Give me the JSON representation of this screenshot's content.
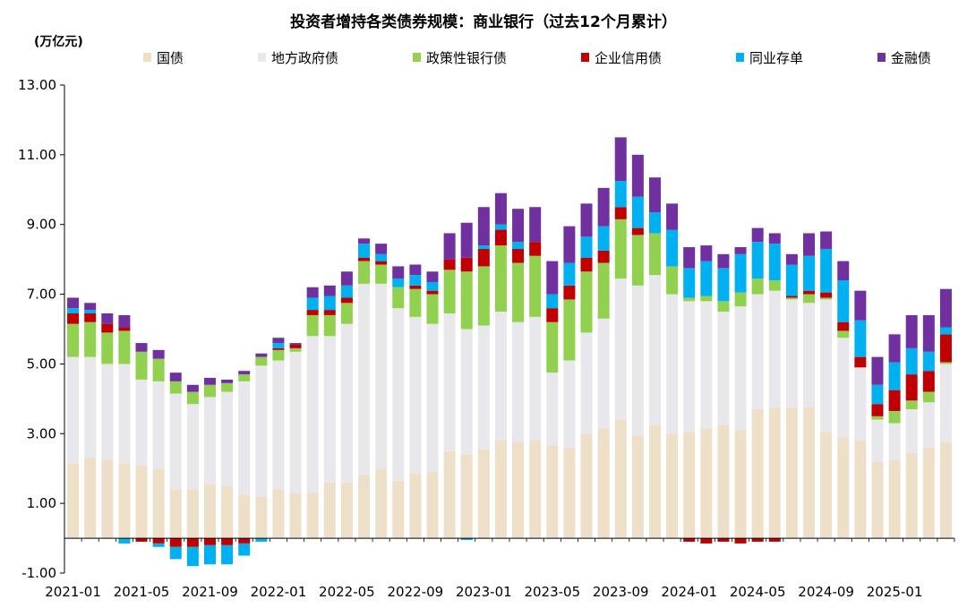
{
  "chart_data": {
    "type": "bar",
    "stacked": true,
    "title": "投资者增持各类债券规模：商业银行（过去12个月累计）",
    "ylabel": "(万亿元)",
    "ylim": [
      -1.0,
      13.0
    ],
    "yticks": [
      "-1.00",
      "1.00",
      "3.00",
      "5.00",
      "7.00",
      "9.00",
      "11.00",
      "13.00"
    ],
    "ytick_values": [
      -1,
      1,
      3,
      5,
      7,
      9,
      11,
      13
    ],
    "xtick_labels": [
      "2021-01",
      "2021-05",
      "2021-09",
      "2022-01",
      "2022-05",
      "2022-09",
      "2023-01",
      "2023-05",
      "2023-09",
      "2024-01",
      "2024-05",
      "2024-09",
      "2025-01"
    ],
    "legend_position": "top",
    "categories": [
      "2021-01",
      "2021-02",
      "2021-03",
      "2021-04",
      "2021-05",
      "2021-06",
      "2021-07",
      "2021-08",
      "2021-09",
      "2021-10",
      "2021-11",
      "2021-12",
      "2022-01",
      "2022-02",
      "2022-03",
      "2022-04",
      "2022-05",
      "2022-06",
      "2022-07",
      "2022-08",
      "2022-09",
      "2022-10",
      "2022-11",
      "2022-12",
      "2023-01",
      "2023-02",
      "2023-03",
      "2023-04",
      "2023-05",
      "2023-06",
      "2023-07",
      "2023-08",
      "2023-09",
      "2023-10",
      "2023-11",
      "2023-12",
      "2024-01",
      "2024-02",
      "2024-03",
      "2024-04",
      "2024-05",
      "2024-06",
      "2024-07",
      "2024-08",
      "2024-09",
      "2024-10",
      "2024-11",
      "2024-12",
      "2025-01",
      "2025-02",
      "2025-03",
      "2025-04"
    ],
    "series": [
      {
        "name": "国债",
        "color": "#EEDFC9",
        "values": [
          2.15,
          2.3,
          2.25,
          2.15,
          2.1,
          2.0,
          1.4,
          1.4,
          1.55,
          1.5,
          1.25,
          1.2,
          1.4,
          1.3,
          1.3,
          1.6,
          1.6,
          1.8,
          2.0,
          1.65,
          1.85,
          1.9,
          2.5,
          2.4,
          2.55,
          2.8,
          2.75,
          2.8,
          2.65,
          2.6,
          3.0,
          3.15,
          3.4,
          2.95,
          3.25,
          3.0,
          3.05,
          3.15,
          3.25,
          3.1,
          3.7,
          3.75,
          3.75,
          3.75,
          3.05,
          2.9,
          2.8,
          2.2,
          2.25,
          2.45,
          2.6,
          2.75
        ]
      },
      {
        "name": "地方政府债",
        "color": "#E8E8EC",
        "values": [
          3.05,
          2.9,
          2.75,
          2.85,
          2.45,
          2.5,
          2.75,
          2.45,
          2.5,
          2.7,
          3.25,
          3.75,
          3.7,
          4.05,
          4.5,
          4.2,
          4.55,
          5.5,
          5.3,
          4.95,
          4.5,
          4.25,
          3.95,
          3.6,
          3.55,
          3.7,
          3.45,
          3.55,
          2.1,
          2.5,
          2.9,
          3.15,
          4.05,
          4.3,
          4.3,
          4.0,
          3.75,
          3.65,
          3.25,
          3.55,
          3.3,
          3.35,
          3.1,
          3.0,
          3.8,
          2.85,
          2.1,
          1.2,
          1.05,
          1.25,
          1.3,
          2.25
        ]
      },
      {
        "name": "政策性银行债",
        "color": "#92D050",
        "values": [
          0.95,
          1.0,
          0.9,
          0.95,
          0.8,
          0.65,
          0.35,
          0.35,
          0.35,
          0.25,
          0.2,
          0.25,
          0.3,
          0.1,
          0.6,
          0.6,
          0.6,
          0.65,
          0.55,
          0.6,
          0.8,
          0.85,
          1.25,
          1.65,
          1.7,
          1.9,
          1.7,
          1.75,
          1.45,
          1.75,
          1.75,
          1.6,
          1.7,
          1.45,
          1.2,
          0.8,
          0.1,
          0.15,
          0.3,
          0.4,
          0.45,
          0.3,
          0.05,
          0.25,
          0.05,
          0.2,
          0.0,
          0.1,
          0.35,
          0.25,
          0.3,
          0.05
        ]
      },
      {
        "name": "企业信用债",
        "color": "#C00000",
        "values": [
          0.3,
          0.25,
          0.25,
          0.1,
          -0.1,
          -0.15,
          -0.25,
          -0.25,
          -0.2,
          -0.2,
          -0.15,
          0.0,
          0.05,
          0.1,
          0.15,
          0.15,
          0.15,
          0.1,
          0.1,
          0.0,
          0.1,
          0.1,
          0.3,
          0.4,
          0.5,
          0.45,
          0.4,
          0.4,
          0.4,
          0.4,
          0.4,
          0.35,
          0.35,
          0.2,
          0.0,
          0.0,
          -0.1,
          -0.15,
          -0.1,
          -0.15,
          -0.1,
          -0.1,
          0.05,
          0.1,
          0.15,
          0.25,
          0.3,
          0.35,
          0.6,
          0.75,
          0.6,
          0.8
        ]
      },
      {
        "name": "同业存单",
        "color": "#00B0F0",
        "values": [
          0.15,
          0.1,
          0.0,
          -0.15,
          0.0,
          -0.1,
          -0.35,
          -0.55,
          -0.55,
          -0.55,
          -0.35,
          -0.1,
          0.15,
          0.0,
          0.35,
          0.4,
          0.35,
          0.4,
          0.2,
          0.25,
          0.3,
          0.25,
          0.0,
          -0.05,
          0.1,
          0.15,
          0.2,
          0.0,
          0.4,
          0.65,
          0.6,
          0.7,
          0.75,
          0.9,
          0.6,
          1.05,
          0.85,
          1.0,
          0.95,
          1.1,
          1.05,
          1.05,
          0.9,
          1.0,
          1.25,
          1.2,
          1.05,
          0.55,
          0.8,
          0.75,
          0.55,
          0.2
        ]
      },
      {
        "name": "金融债",
        "color": "#7030A0",
        "values": [
          0.3,
          0.2,
          0.3,
          0.35,
          0.25,
          0.25,
          0.25,
          0.2,
          0.2,
          0.1,
          0.1,
          0.1,
          0.15,
          0.05,
          0.3,
          0.3,
          0.4,
          0.15,
          0.3,
          0.35,
          0.3,
          0.3,
          0.75,
          1.0,
          1.1,
          0.9,
          0.95,
          1.0,
          0.95,
          1.05,
          0.95,
          1.1,
          1.25,
          1.2,
          1.0,
          0.75,
          0.6,
          0.45,
          0.4,
          0.2,
          0.4,
          0.3,
          0.3,
          0.65,
          0.5,
          0.55,
          0.85,
          0.8,
          0.8,
          0.95,
          1.05,
          1.1
        ]
      }
    ]
  }
}
